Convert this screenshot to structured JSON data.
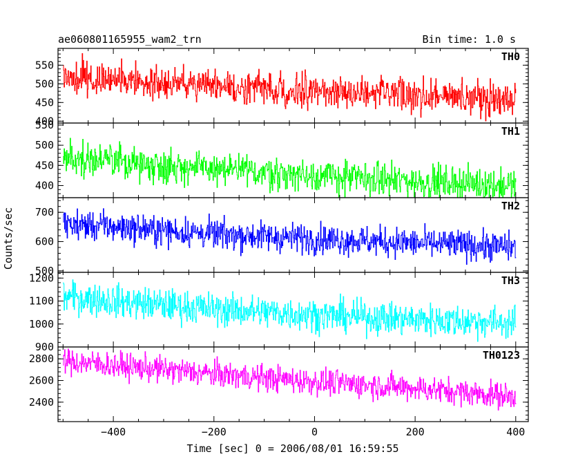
{
  "chart_data": {
    "type": "line",
    "title_left": "ae060801165955_wam2_trn",
    "title_right": "Bin time: 1.0 s",
    "xlabel": "Time [sec] 0 = 2006/08/01 16:59:55",
    "ylabel": "Counts/sec",
    "xlim": [
      -510,
      425
    ],
    "xticks": [
      -400,
      -200,
      0,
      200,
      400
    ],
    "x_start": -500,
    "x_end": 400,
    "panels": [
      {
        "name": "TH0",
        "color": "#ff0000",
        "ylim": [
          395,
          595
        ],
        "yticks": [
          400,
          450,
          500,
          550
        ],
        "trend": {
          "x": [
            -500,
            -400,
            -200,
            0,
            200,
            400
          ],
          "y": [
            520,
            510,
            495,
            480,
            468,
            460
          ]
        },
        "noise_sd": 22
      },
      {
        "name": "TH1",
        "color": "#00ff00",
        "ylim": [
          370,
          555
        ],
        "yticks": [
          400,
          450,
          500,
          550
        ],
        "trend": {
          "x": [
            -500,
            -400,
            -200,
            0,
            200,
            400
          ],
          "y": [
            470,
            460,
            440,
            425,
            410,
            400
          ]
        },
        "noise_sd": 20
      },
      {
        "name": "TH2",
        "color": "#0000ff",
        "ylim": [
          495,
          750
        ],
        "yticks": [
          500,
          600,
          700
        ],
        "trend": {
          "x": [
            -500,
            -400,
            -200,
            0,
            200,
            400
          ],
          "y": [
            660,
            650,
            625,
            610,
            595,
            580
          ]
        },
        "noise_sd": 25
      },
      {
        "name": "TH3",
        "color": "#00ffff",
        "ylim": [
          900,
          1225
        ],
        "yticks": [
          900,
          1000,
          1100,
          1200
        ],
        "trend": {
          "x": [
            -500,
            -400,
            -200,
            0,
            200,
            400
          ],
          "y": [
            1120,
            1100,
            1065,
            1040,
            1020,
            1005
          ]
        },
        "noise_sd": 35
      },
      {
        "name": "TH0123",
        "color": "#ff00ff",
        "ylim": [
          2220,
          2910
        ],
        "yticks": [
          2400,
          2600,
          2800
        ],
        "trend": {
          "x": [
            -500,
            -400,
            -200,
            0,
            200,
            400
          ],
          "y": [
            2780,
            2740,
            2660,
            2590,
            2530,
            2450
          ]
        },
        "noise_sd": 60
      }
    ]
  }
}
